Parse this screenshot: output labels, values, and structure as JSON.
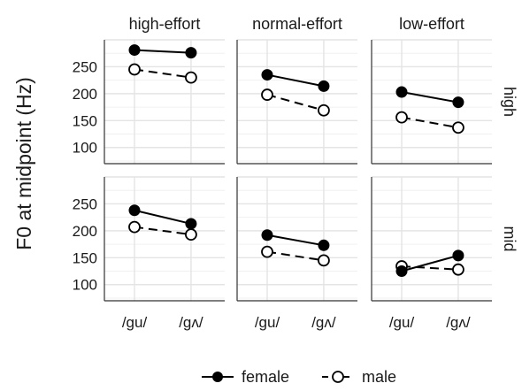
{
  "chart_data": {
    "type": "line",
    "ylabel": "F0 at midpoint (Hz)",
    "categories": [
      "/gu/",
      "/gʌ/"
    ],
    "columns": [
      "high-effort",
      "normal-effort",
      "low-effort"
    ],
    "rows": [
      "high",
      "mid"
    ],
    "y_ticks": [
      100,
      150,
      200,
      250
    ],
    "ylim": [
      70,
      300
    ],
    "grid": true,
    "legend": {
      "position": "bottom",
      "entries": [
        "female",
        "male"
      ]
    },
    "series_styles": {
      "female": {
        "marker": "filled-circle",
        "line": "solid"
      },
      "male": {
        "marker": "open-circle",
        "line": "dashed"
      }
    },
    "panels": [
      {
        "row": "high",
        "column": "high-effort",
        "female": [
          281,
          276
        ],
        "male": [
          245,
          230
        ]
      },
      {
        "row": "high",
        "column": "normal-effort",
        "female": [
          235,
          214
        ],
        "male": [
          198,
          169
        ]
      },
      {
        "row": "high",
        "column": "low-effort",
        "female": [
          203,
          184
        ],
        "male": [
          156,
          137
        ]
      },
      {
        "row": "mid",
        "column": "high-effort",
        "female": [
          238,
          213
        ],
        "male": [
          207,
          193
        ]
      },
      {
        "row": "mid",
        "column": "normal-effort",
        "female": [
          192,
          173
        ],
        "male": [
          161,
          145
        ]
      },
      {
        "row": "mid",
        "column": "low-effort",
        "female": [
          125,
          154
        ],
        "male": [
          134,
          128
        ]
      }
    ]
  }
}
